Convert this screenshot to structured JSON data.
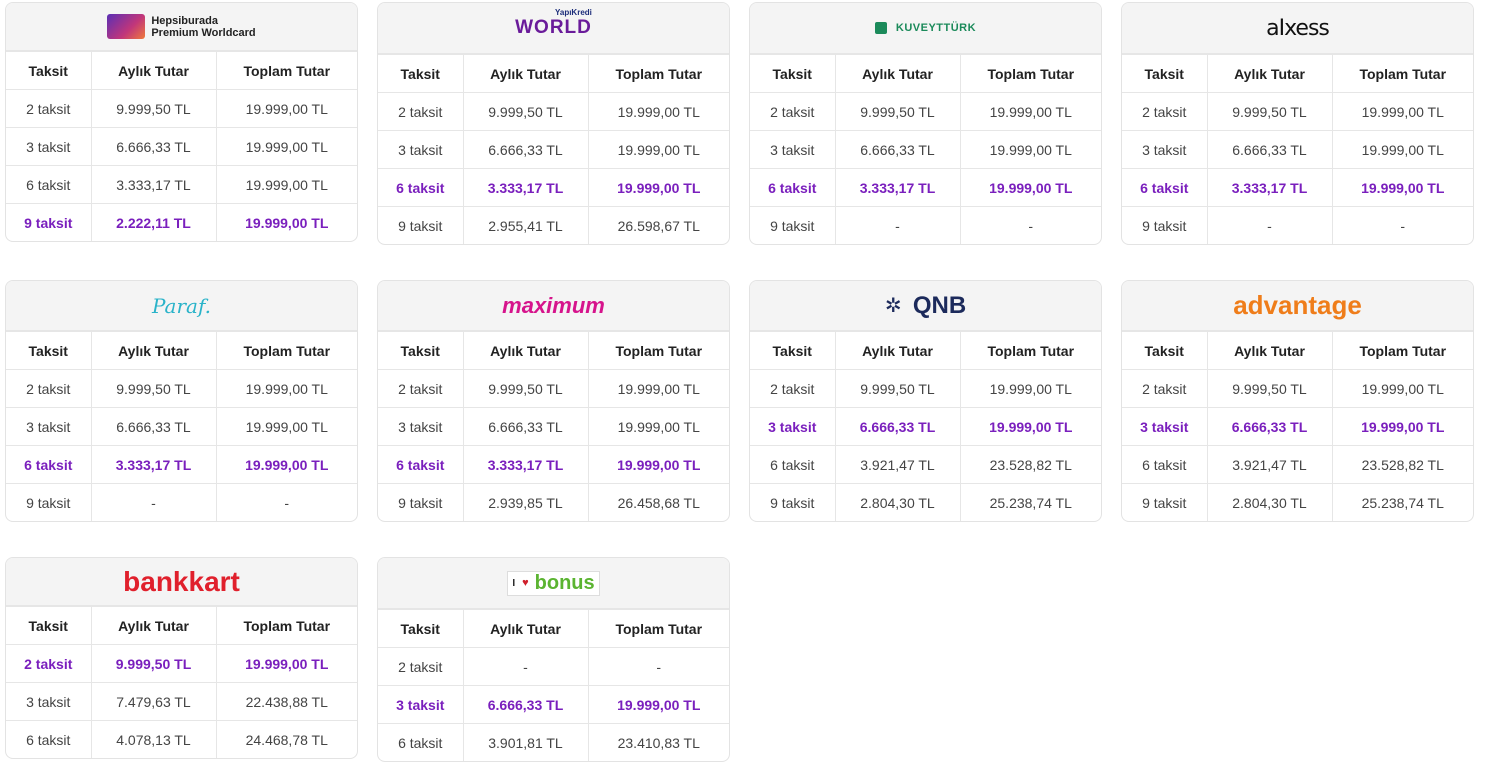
{
  "headers": [
    "Taksit",
    "Aylık Tutar",
    "Toplam Tutar"
  ],
  "cards": [
    {
      "brand": "Hepsiburada Premium Worldcard",
      "logo": {
        "line1": "Hepsiburada",
        "line2": "Premium Worldcard",
        "icon": "credit-card-icon"
      },
      "rows": [
        {
          "taksit": "2 taksit",
          "aylik": "9.999,50 TL",
          "toplam": "19.999,00 TL",
          "hl": false
        },
        {
          "taksit": "3 taksit",
          "aylik": "6.666,33 TL",
          "toplam": "19.999,00 TL",
          "hl": false
        },
        {
          "taksit": "6 taksit",
          "aylik": "3.333,17 TL",
          "toplam": "19.999,00 TL",
          "hl": false
        },
        {
          "taksit": "9 taksit",
          "aylik": "2.222,11 TL",
          "toplam": "19.999,00 TL",
          "hl": true
        }
      ]
    },
    {
      "brand": "World",
      "logo": {
        "text": "WORLD",
        "sub": "YapıKredi"
      },
      "rows": [
        {
          "taksit": "2 taksit",
          "aylik": "9.999,50 TL",
          "toplam": "19.999,00 TL",
          "hl": false
        },
        {
          "taksit": "3 taksit",
          "aylik": "6.666,33 TL",
          "toplam": "19.999,00 TL",
          "hl": false
        },
        {
          "taksit": "6 taksit",
          "aylik": "3.333,17 TL",
          "toplam": "19.999,00 TL",
          "hl": true
        },
        {
          "taksit": "9 taksit",
          "aylik": "2.955,41 TL",
          "toplam": "26.598,67 TL",
          "hl": false
        }
      ]
    },
    {
      "brand": "Kuveyt Türk",
      "logo": {
        "text": "KUVEYTTÜRK",
        "icon": "kuveyt-turk-icon"
      },
      "rows": [
        {
          "taksit": "2 taksit",
          "aylik": "9.999,50 TL",
          "toplam": "19.999,00 TL",
          "hl": false
        },
        {
          "taksit": "3 taksit",
          "aylik": "6.666,33 TL",
          "toplam": "19.999,00 TL",
          "hl": false
        },
        {
          "taksit": "6 taksit",
          "aylik": "3.333,17 TL",
          "toplam": "19.999,00 TL",
          "hl": true
        },
        {
          "taksit": "9 taksit",
          "aylik": "-",
          "toplam": "-",
          "hl": false
        }
      ]
    },
    {
      "brand": "Axess",
      "logo": {
        "text": "aIxess"
      },
      "rows": [
        {
          "taksit": "2 taksit",
          "aylik": "9.999,50 TL",
          "toplam": "19.999,00 TL",
          "hl": false
        },
        {
          "taksit": "3 taksit",
          "aylik": "6.666,33 TL",
          "toplam": "19.999,00 TL",
          "hl": false
        },
        {
          "taksit": "6 taksit",
          "aylik": "3.333,17 TL",
          "toplam": "19.999,00 TL",
          "hl": true
        },
        {
          "taksit": "9 taksit",
          "aylik": "-",
          "toplam": "-",
          "hl": false
        }
      ]
    },
    {
      "brand": "Paraf",
      "logo": {
        "text": "Paraf."
      },
      "rows": [
        {
          "taksit": "2 taksit",
          "aylik": "9.999,50 TL",
          "toplam": "19.999,00 TL",
          "hl": false
        },
        {
          "taksit": "3 taksit",
          "aylik": "6.666,33 TL",
          "toplam": "19.999,00 TL",
          "hl": false
        },
        {
          "taksit": "6 taksit",
          "aylik": "3.333,17 TL",
          "toplam": "19.999,00 TL",
          "hl": true
        },
        {
          "taksit": "9 taksit",
          "aylik": "-",
          "toplam": "-",
          "hl": false
        }
      ]
    },
    {
      "brand": "Maximum",
      "logo": {
        "text": "maximum"
      },
      "rows": [
        {
          "taksit": "2 taksit",
          "aylik": "9.999,50 TL",
          "toplam": "19.999,00 TL",
          "hl": false
        },
        {
          "taksit": "3 taksit",
          "aylik": "6.666,33 TL",
          "toplam": "19.999,00 TL",
          "hl": false
        },
        {
          "taksit": "6 taksit",
          "aylik": "3.333,17 TL",
          "toplam": "19.999,00 TL",
          "hl": true
        },
        {
          "taksit": "9 taksit",
          "aylik": "2.939,85 TL",
          "toplam": "26.458,68 TL",
          "hl": false
        }
      ]
    },
    {
      "brand": "QNB",
      "logo": {
        "text": "QNB",
        "icon": "qnb-icon"
      },
      "rows": [
        {
          "taksit": "2 taksit",
          "aylik": "9.999,50 TL",
          "toplam": "19.999,00 TL",
          "hl": false
        },
        {
          "taksit": "3 taksit",
          "aylik": "6.666,33 TL",
          "toplam": "19.999,00 TL",
          "hl": true
        },
        {
          "taksit": "6 taksit",
          "aylik": "3.921,47 TL",
          "toplam": "23.528,82 TL",
          "hl": false
        },
        {
          "taksit": "9 taksit",
          "aylik": "2.804,30 TL",
          "toplam": "25.238,74 TL",
          "hl": false
        }
      ]
    },
    {
      "brand": "Advantage",
      "logo": {
        "text": "advantage"
      },
      "rows": [
        {
          "taksit": "2 taksit",
          "aylik": "9.999,50 TL",
          "toplam": "19.999,00 TL",
          "hl": false
        },
        {
          "taksit": "3 taksit",
          "aylik": "6.666,33 TL",
          "toplam": "19.999,00 TL",
          "hl": true
        },
        {
          "taksit": "6 taksit",
          "aylik": "3.921,47 TL",
          "toplam": "23.528,82 TL",
          "hl": false
        },
        {
          "taksit": "9 taksit",
          "aylik": "2.804,30 TL",
          "toplam": "25.238,74 TL",
          "hl": false
        }
      ]
    },
    {
      "brand": "Bankkart",
      "logo": {
        "text": "bankkart"
      },
      "rows": [
        {
          "taksit": "2 taksit",
          "aylik": "9.999,50 TL",
          "toplam": "19.999,00 TL",
          "hl": true
        },
        {
          "taksit": "3 taksit",
          "aylik": "7.479,63 TL",
          "toplam": "22.438,88 TL",
          "hl": false
        },
        {
          "taksit": "6 taksit",
          "aylik": "4.078,13 TL",
          "toplam": "24.468,78 TL",
          "hl": false
        }
      ]
    },
    {
      "brand": "Bonus",
      "logo": {
        "text": "bonus",
        "prefix": "I"
      },
      "rows": [
        {
          "taksit": "2 taksit",
          "aylik": "-",
          "toplam": "-",
          "hl": false
        },
        {
          "taksit": "3 taksit",
          "aylik": "6.666,33 TL",
          "toplam": "19.999,00 TL",
          "hl": true
        },
        {
          "taksit": "6 taksit",
          "aylik": "3.901,81 TL",
          "toplam": "23.410,83 TL",
          "hl": false
        }
      ]
    }
  ]
}
